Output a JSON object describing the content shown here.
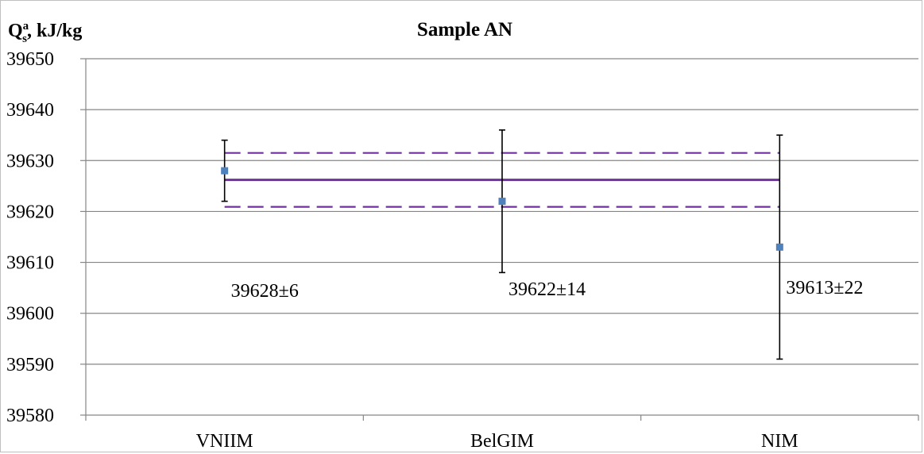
{
  "chart_data": {
    "type": "scatter",
    "title": "Sample AN",
    "ylabel": {
      "main": "Q",
      "sup": "a",
      "sub": "s",
      "unit": ", kJ/kg"
    },
    "ylim": [
      39580,
      39650
    ],
    "yticks": [
      39580,
      39590,
      39600,
      39610,
      39620,
      39630,
      39640,
      39650
    ],
    "grid": true,
    "categories": [
      "VNIIM",
      "BelGIM",
      "NIM"
    ],
    "points": [
      {
        "category": "VNIIM",
        "value": 39628,
        "error": 6,
        "label": "39628±6"
      },
      {
        "category": "BelGIM",
        "value": 39622,
        "error": 14,
        "label": "39622±14"
      },
      {
        "category": "NIM",
        "value": 39613,
        "error": 22,
        "label": "39613±22"
      }
    ],
    "reference": {
      "value": 39626.2,
      "lower": 39620.9,
      "upper": 39631.5
    },
    "colors": {
      "marker": "#4f81bd",
      "reference": "#7030a0",
      "errorbar": "#000000",
      "grid": "#868686"
    }
  }
}
